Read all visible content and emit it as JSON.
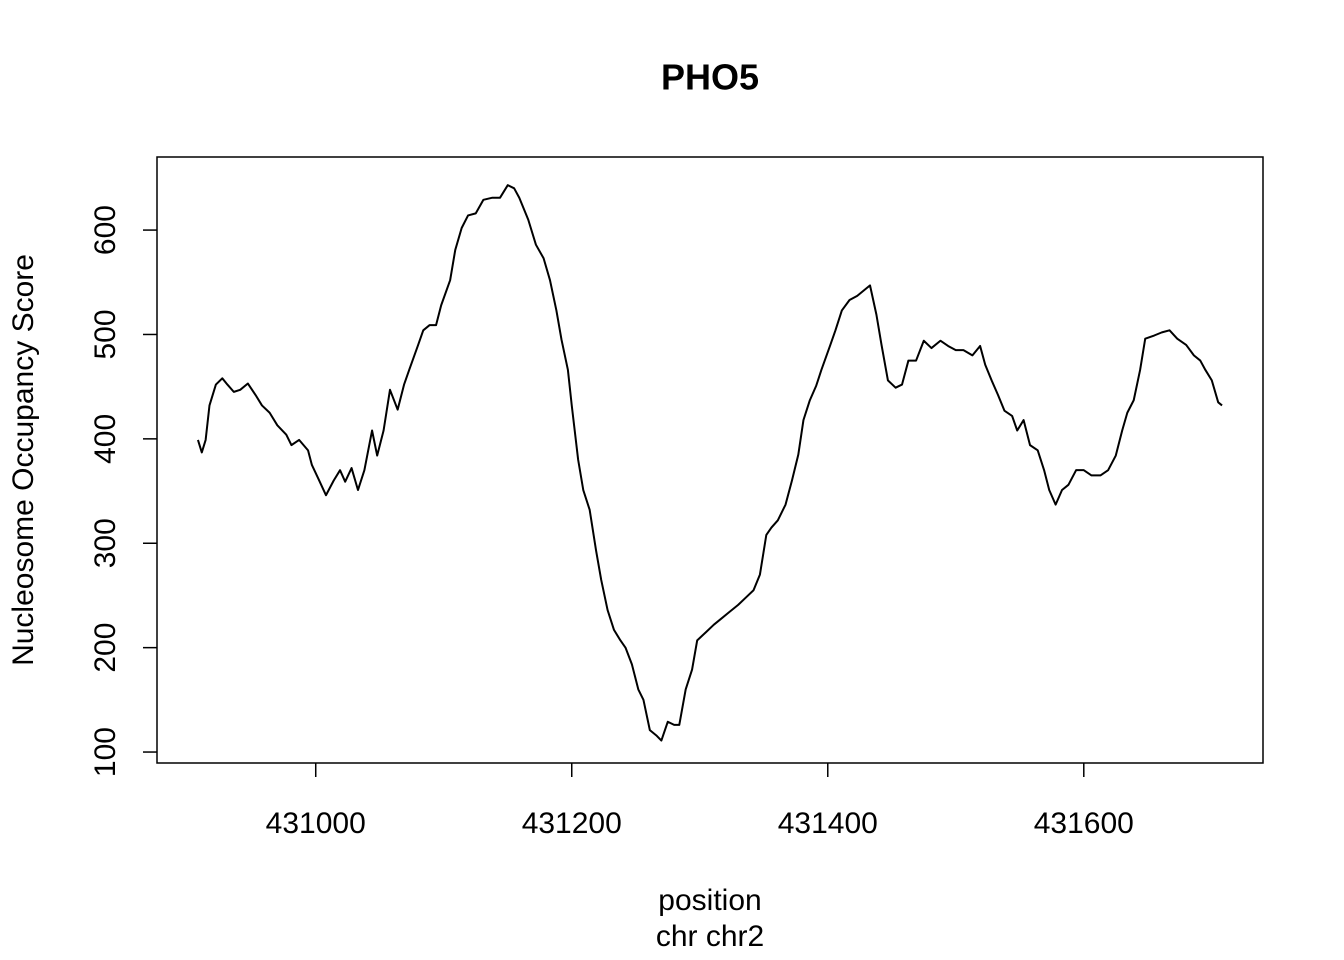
{
  "chart_data": {
    "type": "line",
    "title": "PHO5",
    "x_label": "position",
    "subtitle": "chr chr2",
    "y_label": "Nucleosome Occupancy Score",
    "x": [
      430908,
      430911,
      430914,
      430917,
      430922,
      430927,
      430931,
      430936,
      430941,
      430947,
      430953,
      430958,
      430964,
      430970,
      430977,
      430981,
      430987,
      430994,
      430997,
      431002,
      431008,
      431014,
      431019,
      431023,
      431028,
      431033,
      431038,
      431044,
      431048,
      431053,
      431058,
      431064,
      431069,
      431073,
      431080,
      431084,
      431089,
      431094,
      431098,
      431105,
      431109,
      431114,
      431119,
      431125,
      431131,
      431138,
      431144,
      431150,
      431155,
      431159,
      431166,
      431172,
      431178,
      431183,
      431188,
      431192,
      431197,
      431200,
      431205,
      431209,
      431214,
      431219,
      431223,
      431228,
      431233,
      431238,
      431242,
      431247,
      431252,
      431256,
      431261,
      431266,
      431270,
      431275,
      431280,
      431284,
      431289,
      431294,
      431298,
      431305,
      431311,
      431317,
      431323,
      431330,
      431336,
      431342,
      431347,
      431352,
      431356,
      431361,
      431367,
      431372,
      431377,
      431381,
      431386,
      431391,
      431395,
      431402,
      431406,
      431411,
      431417,
      431423,
      431428,
      431433,
      431438,
      431442,
      431447,
      431453,
      431458,
      431463,
      431469,
      431475,
      431481,
      431488,
      431494,
      431500,
      431506,
      431513,
      431519,
      431523,
      431528,
      431533,
      431538,
      431544,
      431548,
      431553,
      431558,
      431564,
      431569,
      431573,
      431578,
      431583,
      431588,
      431594,
      431600,
      431606,
      431613,
      431619,
      431625,
      431630,
      431634,
      431639,
      431644,
      431648,
      431655,
      431661,
      431667,
      431673,
      431680,
      431686,
      431691,
      431695,
      431700,
      431705,
      431708
    ],
    "series": [
      {
        "name": "score",
        "color": "#000000",
        "values": [
          399,
          387,
          399,
          432,
          452,
          458,
          452,
          445,
          447,
          453,
          442,
          432,
          425,
          413,
          404,
          394,
          399,
          389,
          375,
          362,
          346,
          360,
          370,
          359,
          372,
          351,
          370,
          408,
          384,
          408,
          447,
          428,
          452,
          466,
          490,
          504,
          509,
          509,
          528,
          552,
          581,
          602,
          614,
          616,
          629,
          631,
          631,
          643,
          640,
          631,
          610,
          586,
          573,
          552,
          523,
          495,
          466,
          432,
          380,
          351,
          332,
          293,
          265,
          236,
          217,
          207,
          200,
          184,
          160,
          150,
          121,
          116,
          111,
          129,
          126,
          126,
          160,
          179,
          207,
          215,
          222,
          228,
          234,
          241,
          248,
          255,
          270,
          308,
          315,
          322,
          337,
          360,
          385,
          418,
          437,
          451,
          466,
          490,
          504,
          523,
          533,
          537,
          542,
          547,
          519,
          490,
          456,
          449,
          452,
          475,
          475,
          494,
          487,
          494,
          489,
          485,
          485,
          480,
          489,
          471,
          456,
          442,
          427,
          422,
          408,
          418,
          394,
          389,
          370,
          351,
          337,
          351,
          356,
          370,
          370,
          365,
          365,
          370,
          384,
          408,
          425,
          437,
          466,
          496,
          499,
          502,
          504,
          496,
          490,
          480,
          475,
          466,
          456,
          435,
          432
        ]
      }
    ],
    "xlim": [
      430876,
      431740
    ],
    "ylim": [
      89.5,
      670
    ],
    "xticks": [
      431000,
      431200,
      431400,
      431600
    ],
    "yticks": [
      100,
      200,
      300,
      400,
      500,
      600
    ]
  }
}
